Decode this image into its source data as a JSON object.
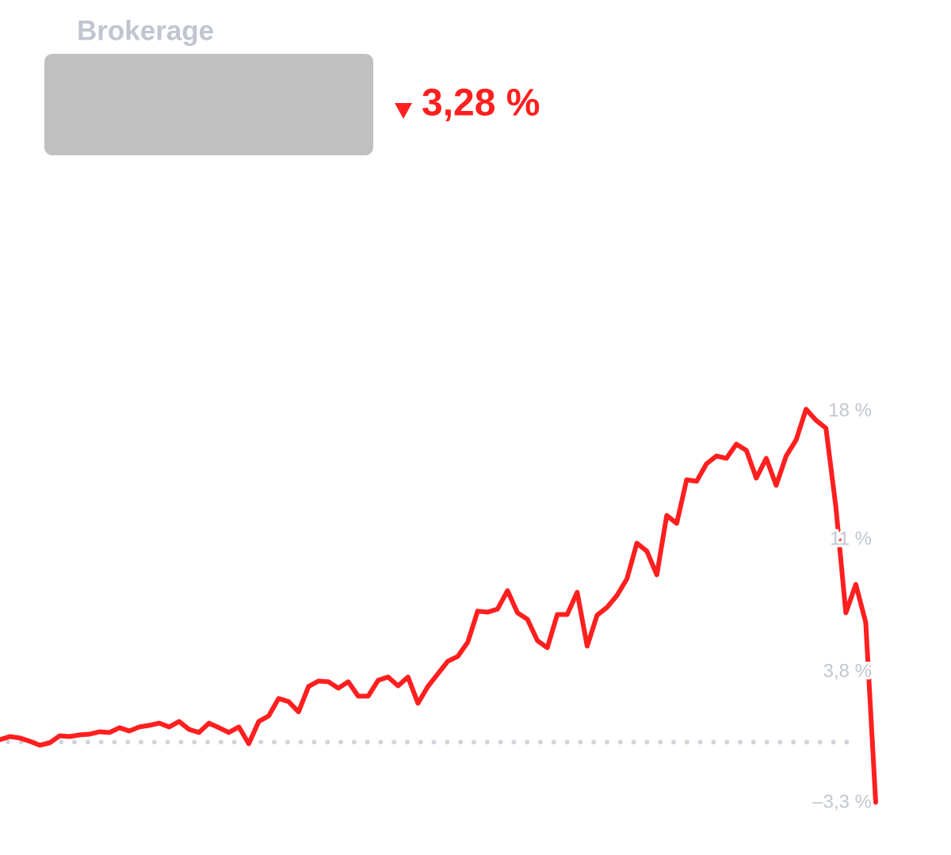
{
  "chart_data": {
    "type": "line",
    "title": "Brokerage",
    "change": {
      "value": -3.28,
      "label": "3,28 %"
    },
    "color": "#ff1f1f",
    "values": [
      0.13,
      0.3,
      0.22,
      0.04,
      -0.17,
      -0.04,
      0.34,
      0.3,
      0.39,
      0.43,
      0.56,
      0.52,
      0.78,
      0.6,
      0.82,
      0.91,
      1.03,
      0.82,
      1.12,
      0.69,
      0.52,
      1.03,
      0.78,
      0.52,
      0.82,
      -0.09,
      1.12,
      1.42,
      2.37,
      2.2,
      1.64,
      3.02,
      3.32,
      3.28,
      2.93,
      3.28,
      2.5,
      2.5,
      3.36,
      3.54,
      3.06,
      3.54,
      2.11,
      3.02,
      3.71,
      4.4,
      4.66,
      5.43,
      7.12,
      7.07,
      7.24,
      8.24,
      7.03,
      6.68,
      5.52,
      5.13,
      6.94,
      6.94,
      8.15,
      5.22,
      6.9,
      7.33,
      7.98,
      8.88,
      10.82,
      10.39,
      9.1,
      12.33,
      11.9,
      14.27,
      14.19,
      15.14,
      15.57,
      15.44,
      16.21,
      15.87,
      14.36,
      15.44,
      13.97,
      15.57,
      16.43,
      18.11,
      17.51,
      17.08,
      12.76,
      7.03,
      8.58,
      6.51,
      -3.28
    ],
    "ylim": [
      -3.3,
      18
    ],
    "yticks": [
      {
        "value": 18,
        "label": "18 %"
      },
      {
        "value": 11,
        "label": "11 %"
      },
      {
        "value": 3.8,
        "label": "3,8 %"
      },
      {
        "value": -3.3,
        "label": "–3,3 %"
      }
    ],
    "baseline": true
  }
}
